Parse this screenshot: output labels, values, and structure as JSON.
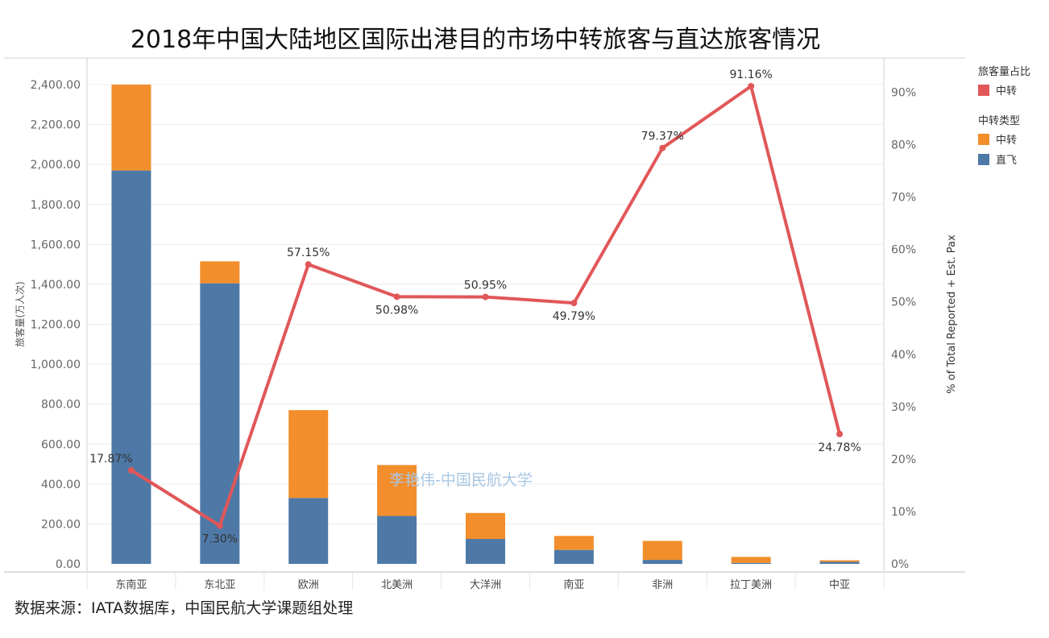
{
  "title": "2018年中国大陆地区国际出港目的市场中转旅客与直达旅客情况",
  "source_note": "数据来源：IATA数据库，中国民航大学课题组处理",
  "watermark": "李艳伟-中国民航大学",
  "legend": {
    "ratio_title": "旅客量占比",
    "ratio_items": [
      {
        "label": "中转",
        "color": "#e15759"
      }
    ],
    "type_title": "中转类型",
    "type_items": [
      {
        "label": "中转",
        "color": "#f28e2b"
      },
      {
        "label": "直飞",
        "color": "#4e79a7"
      }
    ]
  },
  "chart_data": {
    "type": "bar",
    "stacked": true,
    "categories": [
      "东南亚",
      "东北亚",
      "欧洲",
      "北美洲",
      "大洋洲",
      "南亚",
      "非洲",
      "拉丁美洲",
      "中亚"
    ],
    "series": [
      {
        "name": "直飞",
        "color": "#4e79a7",
        "values": [
          1970,
          1405,
          330,
          240,
          125,
          70,
          20,
          5,
          10
        ]
      },
      {
        "name": "中转",
        "color": "#f28e2b",
        "values": [
          430,
          110,
          440,
          255,
          130,
          70,
          95,
          30,
          8
        ]
      }
    ],
    "line": {
      "name": "中转",
      "color": "#e15759",
      "values": [
        17.87,
        7.3,
        57.15,
        50.98,
        50.95,
        49.79,
        79.37,
        91.16,
        24.78
      ],
      "labels": [
        "17.87%",
        "7.30%",
        "57.15%",
        "50.98%",
        "50.95%",
        "49.79%",
        "79.37%",
        "91.16%",
        "24.78%"
      ]
    },
    "ylabel": "旅客量(万人次)",
    "y2label": "% of Total Reported + Est. Pax",
    "ylim": [
      0,
      2400
    ],
    "y2lim": [
      0,
      91.16
    ],
    "yticks": [
      "0.00",
      "200.00",
      "400.00",
      "600.00",
      "800.00",
      "1,000.00",
      "1,200.00",
      "1,400.00",
      "1,600.00",
      "1,800.00",
      "2,000.00",
      "2,200.00",
      "2,400.00"
    ],
    "y2ticks": [
      "0%",
      "10%",
      "20%",
      "30%",
      "40%",
      "50%",
      "60%",
      "70%",
      "80%",
      "90%"
    ],
    "grid": true
  }
}
